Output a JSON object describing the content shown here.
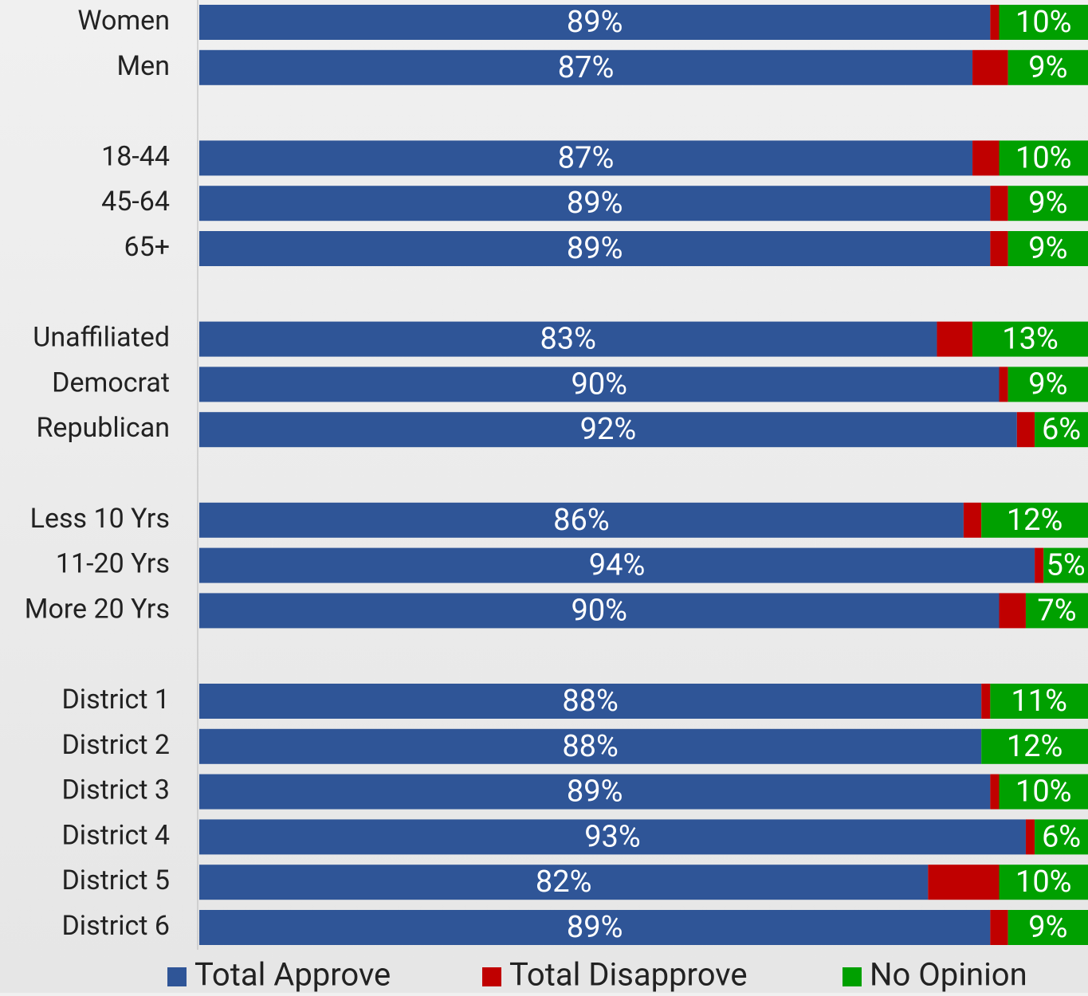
{
  "chart_data": {
    "type": "stacked-barh",
    "categories": [
      "Women",
      "Men",
      null,
      "18-44",
      "45-64",
      "65+",
      null,
      "Unaffiliated",
      "Democrat",
      "Republican",
      null,
      "Less 10 Yrs",
      "11-20 Yrs",
      "More 20 Yrs",
      null,
      "District 1",
      "District 2",
      "District 3",
      "District 4",
      "District 5",
      "District 6"
    ],
    "series": [
      {
        "name": "Total Approve",
        "color": "#2f5597",
        "values": [
          89,
          87,
          null,
          87,
          89,
          89,
          null,
          83,
          90,
          92,
          null,
          86,
          94,
          90,
          null,
          88,
          88,
          89,
          93,
          82,
          89
        ],
        "value_labels": [
          "89%",
          "87%",
          null,
          "87%",
          "89%",
          "89%",
          null,
          "83%",
          "90%",
          "92%",
          null,
          "86%",
          "94%",
          "90%",
          null,
          "88%",
          "88%",
          "89%",
          "93%",
          "82%",
          "89%"
        ]
      },
      {
        "name": "Total Disapprove",
        "color": "#c00000",
        "values": [
          1,
          4,
          null,
          3,
          2,
          2,
          null,
          4,
          1,
          2,
          null,
          2,
          1,
          3,
          null,
          1,
          0,
          1,
          1,
          8,
          2
        ]
      },
      {
        "name": "No Opinion",
        "color": "#00a000",
        "values": [
          10,
          9,
          null,
          10,
          9,
          9,
          null,
          13,
          9,
          6,
          null,
          12,
          5,
          7,
          null,
          11,
          12,
          10,
          6,
          10,
          9
        ],
        "value_labels": [
          "10%",
          "9%",
          null,
          "10%",
          "9%",
          "9%",
          null,
          "13%",
          "9%",
          "6%",
          null,
          "12%",
          "5%",
          "7%",
          null,
          "11%",
          "12%",
          "10%",
          "6%",
          "10%",
          "9%"
        ]
      }
    ],
    "xlim": [
      0,
      100
    ],
    "legend": "bottom"
  }
}
